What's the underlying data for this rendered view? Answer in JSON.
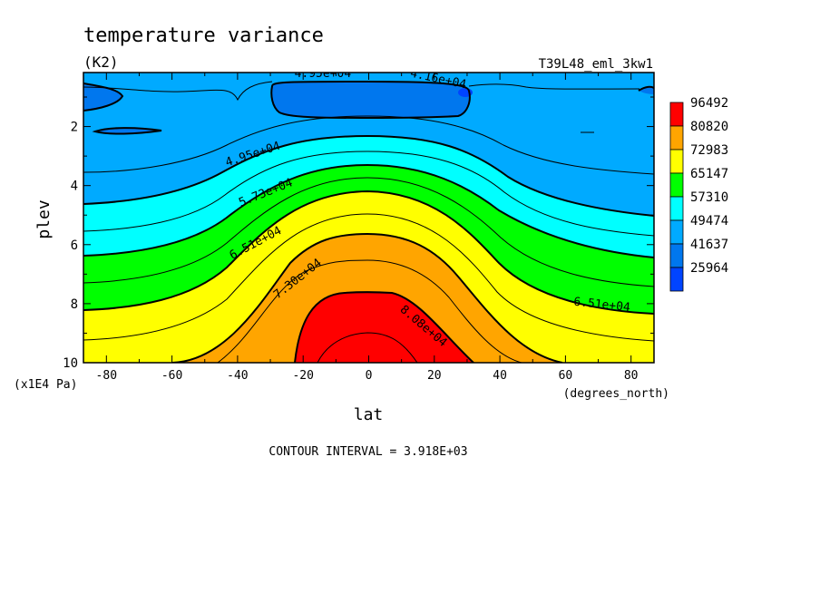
{
  "chart_data": {
    "type": "heatmap",
    "title": "temperature variance",
    "subtitle": "(K2)",
    "experiment": "T39L48_eml_3kw1",
    "xlabel": "lat",
    "ylabel": "plev",
    "x_units": "(degrees_north)",
    "y_units": "(x1E4 Pa)",
    "xlim": [
      -87,
      87
    ],
    "ylim": [
      10,
      0.17
    ],
    "x_ticks": [
      "-80",
      "-60",
      "-40",
      "-20",
      "0",
      "20",
      "40",
      "60",
      "80"
    ],
    "x_tick_values": [
      -80,
      -60,
      -40,
      -20,
      0,
      20,
      40,
      60,
      80
    ],
    "y_ticks": [
      "2",
      "4",
      "6",
      "8",
      "10"
    ],
    "y_tick_values": [
      2,
      4,
      6,
      8,
      10
    ],
    "footer": "CONTOUR INTERVAL = 3.918E+03",
    "colorbar": {
      "labels": [
        "96492",
        "80820",
        "72983",
        "65147",
        "57310",
        "49474",
        "41637",
        "25964"
      ],
      "colors": [
        "#ff0000",
        "#ffa500",
        "#ffff00",
        "#00ff00",
        "#00ffff",
        "#00aaff",
        "#0077ee",
        "#0044ff"
      ]
    },
    "contour_labels": [
      {
        "text": "4.95e+04",
        "lat": -14,
        "plev": 0.17
      },
      {
        "text": "4.16e+04",
        "lat": 21,
        "plev": 0.35
      },
      {
        "text": "4.95e+04",
        "lat": -35,
        "plev": 2.9
      },
      {
        "text": "5.73e+04",
        "lat": -31,
        "plev": 4.2
      },
      {
        "text": "6.51e+04",
        "lat": -34,
        "plev": 5.9
      },
      {
        "text": "7.30e+04",
        "lat": -21,
        "plev": 7.1
      },
      {
        "text": "8.08e+04",
        "lat": 16,
        "plev": 8.7
      },
      {
        "text": "6.51e+04",
        "lat": 71,
        "plev": 8.0
      }
    ]
  }
}
